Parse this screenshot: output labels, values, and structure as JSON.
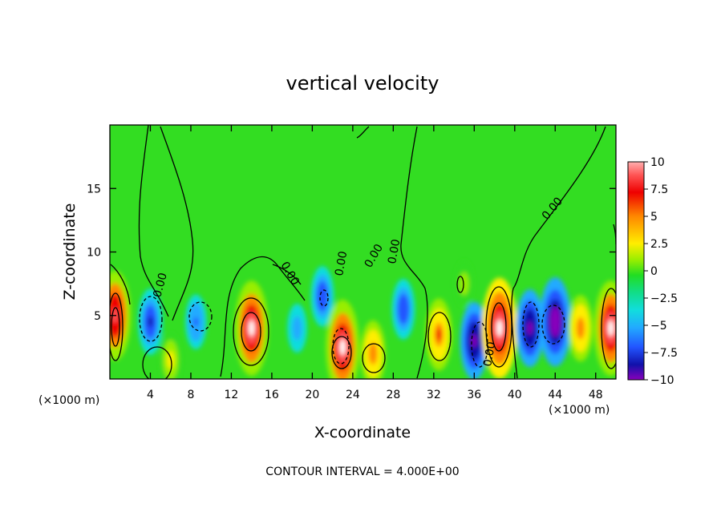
{
  "chart_data": {
    "type": "heatmap",
    "title": "vertical velocity",
    "xlabel": "X-coordinate",
    "ylabel": "Z-coordinate",
    "x_unit": "(×1000 m)",
    "z_unit": "(×1000 m)",
    "footer": "CONTOUR INTERVAL = 4.000E+00",
    "xlim": [
      0,
      50
    ],
    "ylim": [
      0,
      20
    ],
    "x_ticks": [
      4,
      8,
      12,
      16,
      20,
      24,
      28,
      32,
      36,
      40,
      44,
      48
    ],
    "y_ticks": [
      5,
      10,
      15
    ],
    "colorbar": {
      "ticks": [
        10,
        7.5,
        5,
        2.5,
        0,
        -2.5,
        -5,
        -7.5,
        -10
      ],
      "tick_labels": [
        "10",
        "7.5",
        "5",
        "2.5",
        "0",
        "−2.5",
        "−5",
        "−7.5",
        "−10"
      ],
      "range": [
        -10,
        10
      ]
    },
    "contour_labels": [
      "0.00",
      "0.00",
      "0.00",
      "0.00",
      "0.00",
      "0.00",
      "0.00"
    ],
    "features": [
      {
        "x": 0.5,
        "z": 5.0,
        "value": 10
      },
      {
        "x": 4.0,
        "z": 4.5,
        "value": -6
      },
      {
        "x": 6.0,
        "z": 1.5,
        "value": 4
      },
      {
        "x": 8.5,
        "z": 4.5,
        "value": -4
      },
      {
        "x": 14.0,
        "z": 4.0,
        "value": 11
      },
      {
        "x": 18.5,
        "z": 4.0,
        "value": -3
      },
      {
        "x": 21.0,
        "z": 6.5,
        "value": -5
      },
      {
        "x": 23.0,
        "z": 2.5,
        "value": 11
      },
      {
        "x": 26.0,
        "z": 2.0,
        "value": 6
      },
      {
        "x": 29.0,
        "z": 5.5,
        "value": -5
      },
      {
        "x": 32.5,
        "z": 3.5,
        "value": 7
      },
      {
        "x": 35.0,
        "z": 7.5,
        "value": 2.5
      },
      {
        "x": 36.0,
        "z": 3.0,
        "value": -8
      },
      {
        "x": 38.5,
        "z": 4.0,
        "value": 12
      },
      {
        "x": 41.5,
        "z": 4.0,
        "value": -8
      },
      {
        "x": 44.0,
        "z": 4.5,
        "value": -10
      },
      {
        "x": 46.5,
        "z": 4.0,
        "value": 6
      },
      {
        "x": 49.5,
        "z": 4.0,
        "value": 11
      }
    ],
    "background_value": 0.5,
    "grid": false
  }
}
